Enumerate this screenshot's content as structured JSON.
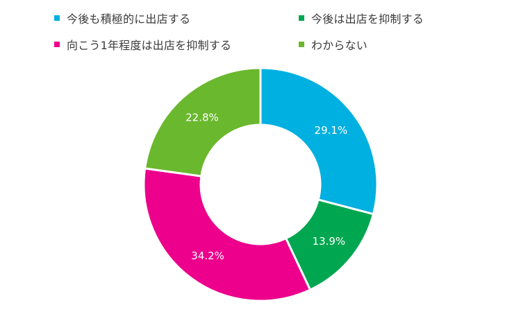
{
  "chart_data": {
    "type": "pie",
    "variant": "donut",
    "categories": [
      "今後も積極的に出店する",
      "今後は出店を抑制する",
      "向こう1年程度は出店を抑制する",
      "わからない"
    ],
    "values": [
      29.1,
      13.9,
      34.2,
      22.8
    ],
    "value_labels": [
      "29.1%",
      "13.9%",
      "34.2%",
      "22.8%"
    ],
    "colors": [
      "#00b0e0",
      "#00a650",
      "#ec008c",
      "#6ab82e"
    ],
    "legend_position": "top",
    "start_angle": "12 o'clock",
    "direction": "clockwise",
    "title": ""
  }
}
